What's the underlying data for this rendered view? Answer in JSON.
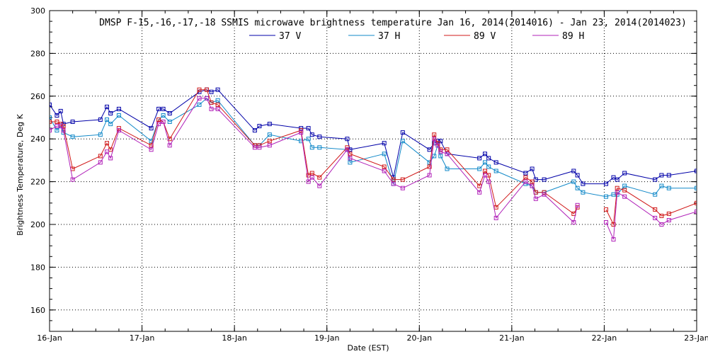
{
  "chart_data": {
    "type": "line",
    "title": "DMSP F-15,-16,-17,-18 SSMIS microwave brightness temperature Jan 16, 2014(2014016) - Jan 23, 2014(2014023)",
    "xlabel": "Date (EST)",
    "ylabel": "Brightness Temperature, Deg K",
    "xlim": [
      0,
      7
    ],
    "ylim": [
      150,
      300
    ],
    "x_ticks": [
      0,
      1,
      2,
      3,
      4,
      5,
      6,
      7
    ],
    "x_tick_labels": [
      "16-Jan",
      "17-Jan",
      "18-Jan",
      "19-Jan",
      "20-Jan",
      "21-Jan",
      "22-Jan",
      "23-Jan"
    ],
    "y_ticks": [
      160,
      180,
      200,
      220,
      240,
      260,
      280,
      300
    ],
    "grid": true,
    "legend_position": "top-center",
    "series": [
      {
        "name": "37 V",
        "color": "#0000a8",
        "points": [
          [
            0.0,
            256
          ],
          [
            0.08,
            251
          ],
          [
            0.12,
            253
          ],
          [
            0.15,
            247
          ],
          [
            0.25,
            248
          ],
          [
            0.55,
            249
          ],
          [
            0.62,
            255
          ],
          [
            0.66,
            252
          ],
          [
            0.75,
            254
          ],
          [
            1.1,
            245
          ],
          [
            1.18,
            254
          ],
          [
            1.23,
            254
          ],
          [
            1.3,
            252
          ],
          [
            1.62,
            262
          ],
          [
            1.7,
            263
          ],
          [
            1.75,
            262
          ],
          [
            1.82,
            263
          ],
          [
            2.22,
            244
          ],
          [
            2.27,
            246
          ],
          [
            2.38,
            247
          ],
          [
            2.72,
            245
          ],
          [
            2.8,
            245
          ],
          [
            2.84,
            242
          ],
          [
            2.92,
            241
          ],
          [
            3.22,
            240
          ],
          [
            3.25,
            235
          ],
          [
            3.62,
            238
          ],
          [
            3.72,
            222
          ],
          [
            3.82,
            243
          ],
          [
            4.11,
            235
          ],
          [
            4.16,
            238
          ],
          [
            4.2,
            239
          ],
          [
            4.23,
            239
          ],
          [
            4.3,
            233
          ],
          [
            4.65,
            231
          ],
          [
            4.71,
            233
          ],
          [
            4.75,
            231
          ],
          [
            4.83,
            229
          ],
          [
            5.15,
            224
          ],
          [
            5.22,
            226
          ],
          [
            5.26,
            221
          ],
          [
            5.35,
            221
          ],
          [
            5.67,
            225
          ],
          [
            5.71,
            223
          ],
          [
            5.77,
            219
          ],
          [
            6.02,
            219
          ],
          [
            6.1,
            222
          ],
          [
            6.14,
            221
          ],
          [
            6.22,
            224
          ],
          [
            6.55,
            221
          ],
          [
            6.62,
            223
          ],
          [
            6.7,
            223
          ],
          [
            7.0,
            225
          ]
        ]
      },
      {
        "name": "37 H",
        "color": "#1088c8",
        "points": [
          [
            0.0,
            250
          ],
          [
            0.08,
            244
          ],
          [
            0.12,
            246
          ],
          [
            0.15,
            243
          ],
          [
            0.25,
            241
          ],
          [
            0.55,
            242
          ],
          [
            0.62,
            249
          ],
          [
            0.66,
            247
          ],
          [
            0.75,
            251
          ],
          [
            1.1,
            239
          ],
          [
            1.18,
            249
          ],
          [
            1.23,
            251
          ],
          [
            1.3,
            248
          ],
          [
            1.62,
            256
          ],
          [
            1.7,
            259
          ],
          [
            1.75,
            257
          ],
          [
            1.82,
            258
          ],
          [
            2.22,
            237
          ],
          [
            2.27,
            237
          ],
          [
            2.38,
            242
          ],
          [
            2.72,
            239
          ],
          [
            2.8,
            240
          ],
          [
            2.84,
            236
          ],
          [
            2.92,
            236
          ],
          [
            3.22,
            235
          ],
          [
            3.25,
            229
          ],
          [
            3.62,
            233
          ],
          [
            3.72,
            219
          ],
          [
            3.82,
            239
          ],
          [
            4.11,
            229
          ],
          [
            4.16,
            232
          ],
          [
            4.2,
            237
          ],
          [
            4.23,
            232
          ],
          [
            4.3,
            226
          ],
          [
            4.65,
            226
          ],
          [
            4.71,
            229
          ],
          [
            4.75,
            227
          ],
          [
            4.83,
            225
          ],
          [
            5.15,
            219
          ],
          [
            5.22,
            218
          ],
          [
            5.26,
            215
          ],
          [
            5.35,
            215
          ],
          [
            5.67,
            220
          ],
          [
            5.71,
            217
          ],
          [
            5.77,
            215
          ],
          [
            6.02,
            213
          ],
          [
            6.1,
            214
          ],
          [
            6.14,
            214
          ],
          [
            6.22,
            218
          ],
          [
            6.55,
            214
          ],
          [
            6.62,
            218
          ],
          [
            6.7,
            217
          ],
          [
            7.0,
            217
          ]
        ]
      },
      {
        "name": "89 V",
        "color": "#d01818",
        "points": [
          [
            0.0,
            248
          ],
          [
            0.08,
            248
          ],
          [
            0.12,
            247
          ],
          [
            0.15,
            246
          ],
          [
            0.25,
            226
          ],
          [
            0.55,
            232
          ],
          [
            0.62,
            238
          ],
          [
            0.66,
            235
          ],
          [
            0.75,
            245
          ],
          [
            1.1,
            237
          ],
          [
            1.18,
            249
          ],
          [
            1.23,
            248
          ],
          [
            1.3,
            240
          ],
          [
            1.62,
            263
          ],
          [
            1.7,
            263
          ],
          [
            1.75,
            257
          ],
          [
            1.82,
            256
          ],
          [
            2.22,
            237
          ],
          [
            2.27,
            237
          ],
          [
            2.38,
            239
          ],
          [
            2.72,
            244
          ],
          [
            2.8,
            223
          ],
          [
            2.84,
            224
          ],
          [
            2.92,
            222
          ],
          [
            3.22,
            236
          ],
          [
            3.25,
            233
          ],
          [
            3.62,
            227
          ],
          [
            3.72,
            221
          ],
          [
            3.82,
            221
          ],
          [
            4.11,
            227
          ],
          [
            4.16,
            242
          ],
          [
            4.2,
            238
          ],
          [
            4.23,
            235
          ],
          [
            4.3,
            235
          ],
          [
            4.65,
            218
          ],
          [
            4.71,
            225
          ],
          [
            4.75,
            223
          ],
          [
            4.83,
            208
          ],
          [
            5.15,
            222
          ],
          [
            5.22,
            220
          ],
          [
            5.26,
            215
          ],
          [
            5.35,
            215
          ],
          [
            5.67,
            205
          ],
          [
            5.71,
            208
          ],
          null,
          [
            6.02,
            207
          ],
          [
            6.1,
            200
          ],
          [
            6.14,
            217
          ],
          [
            6.22,
            216
          ],
          [
            6.55,
            207
          ],
          [
            6.62,
            204
          ],
          [
            6.7,
            205
          ],
          [
            7.0,
            210
          ]
        ]
      },
      {
        "name": "89 H",
        "color": "#b020b8",
        "points": [
          [
            0.0,
            244
          ],
          [
            0.08,
            246
          ],
          [
            0.12,
            246
          ],
          [
            0.15,
            244
          ],
          [
            0.25,
            221
          ],
          [
            0.55,
            229
          ],
          [
            0.62,
            234
          ],
          [
            0.66,
            231
          ],
          [
            0.75,
            244
          ],
          [
            1.1,
            235
          ],
          [
            1.18,
            247
          ],
          [
            1.23,
            248
          ],
          [
            1.3,
            237
          ],
          [
            1.62,
            259
          ],
          [
            1.7,
            259
          ],
          [
            1.75,
            254
          ],
          [
            1.82,
            254
          ],
          [
            2.22,
            236
          ],
          [
            2.27,
            236
          ],
          [
            2.38,
            237
          ],
          [
            2.72,
            243
          ],
          [
            2.8,
            220
          ],
          [
            2.84,
            222
          ],
          [
            2.92,
            218
          ],
          [
            3.22,
            235
          ],
          [
            3.25,
            231
          ],
          [
            3.62,
            225
          ],
          [
            3.72,
            219
          ],
          [
            3.82,
            217
          ],
          [
            4.11,
            223
          ],
          [
            4.16,
            240
          ],
          [
            4.2,
            237
          ],
          [
            4.23,
            234
          ],
          [
            4.3,
            233
          ],
          [
            4.65,
            215
          ],
          [
            4.71,
            223
          ],
          [
            4.75,
            220
          ],
          [
            4.83,
            203
          ],
          [
            5.15,
            220
          ],
          [
            5.22,
            218
          ],
          [
            5.26,
            212
          ],
          [
            5.35,
            214
          ],
          [
            5.67,
            201
          ],
          [
            5.71,
            209
          ],
          null,
          [
            6.02,
            201
          ],
          [
            6.1,
            193
          ],
          [
            6.14,
            215
          ],
          [
            6.22,
            213
          ],
          [
            6.55,
            203
          ],
          [
            6.62,
            200
          ],
          [
            6.7,
            202
          ],
          [
            7.0,
            206
          ]
        ]
      }
    ]
  }
}
